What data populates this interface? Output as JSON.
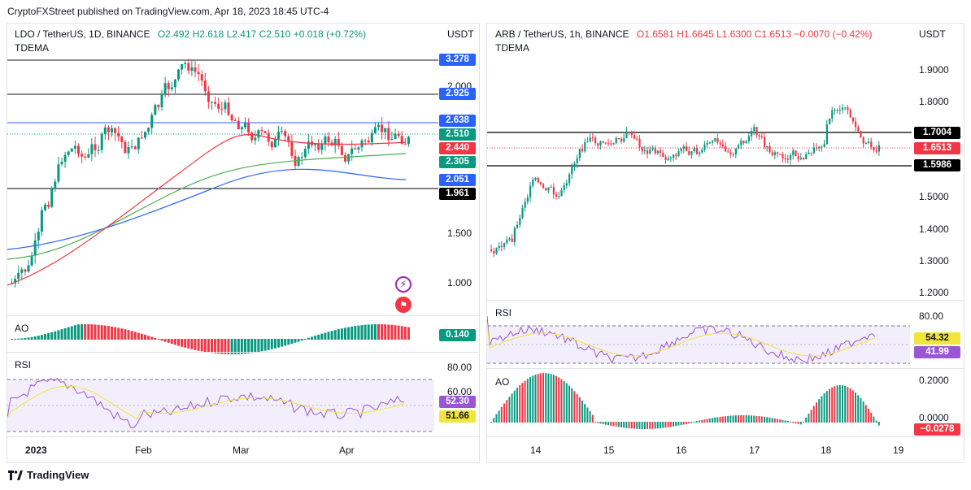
{
  "header": "CryptoFXStreet published on TradingView.com, Apr 18, 2023 18:45 UTC-4",
  "footer_brand": "TradingView",
  "left": {
    "symbol": "LDO / TetherUS, 1D, BINANCE",
    "ohlc": {
      "o": "O2.492",
      "h": "H2.618",
      "l": "L2.417",
      "c": "C2.510",
      "chg": "+0.018 (+0.72%)"
    },
    "overlay_label": "TDEMA",
    "currency": "USDT",
    "price_axis": [
      "2.000",
      "1.500",
      "1.000"
    ],
    "price_tags": [
      {
        "text": "3.278",
        "color": "#2962ff"
      },
      {
        "text": "2.925",
        "color": "#2962ff"
      },
      {
        "text": "2.638",
        "color": "#2962ff"
      },
      {
        "text": "2.510",
        "color": "#089981"
      },
      {
        "text": "2.440",
        "color": "#f23645"
      },
      {
        "text": "2.305",
        "color": "#089981"
      },
      {
        "text": "2.051",
        "color": "#2962ff"
      },
      {
        "text": "1.961",
        "color": "#000000"
      }
    ],
    "ao": {
      "title": "AO",
      "value": "0.140",
      "color": "#089981"
    },
    "rsi": {
      "title": "RSI",
      "levels": [
        "80.00",
        "60.00"
      ],
      "value1": "52.30",
      "value2": "51.66",
      "color1": "#9c56d4",
      "color2": "#f0e53a"
    },
    "time_axis": [
      "2023",
      "Feb",
      "Mar",
      "Apr"
    ],
    "icons": [
      "lightning-icon",
      "us-flag-icon"
    ]
  },
  "right": {
    "symbol": "ARB / TetherUS, 1h, BINANCE",
    "ohlc": {
      "o": "O1.6581",
      "h": "H1.6645",
      "l": "L1.6300",
      "c": "C1.6513",
      "chg": "−0.0070 (−0.42%)"
    },
    "overlay_label": "TDEMA",
    "currency": "USDT",
    "price_axis": [
      "1.9000",
      "1.8000",
      "1.5000",
      "1.4000",
      "1.3000",
      "1.2000"
    ],
    "price_tags": [
      {
        "text": "1.7004",
        "color": "#000000"
      },
      {
        "text": "1.6513",
        "color": "#f23645"
      },
      {
        "text": "1.5986",
        "color": "#000000"
      }
    ],
    "rsi": {
      "title": "RSI",
      "levels": [
        "80.00"
      ],
      "value1": "54.32",
      "value2": "41.99",
      "color1": "#f0e53a",
      "color2": "#9c56d4"
    },
    "ao": {
      "title": "AO",
      "levels": [
        "0.2000",
        "0.0000"
      ],
      "value": "−0.0278",
      "color": "#f23645"
    },
    "time_axis": [
      "14",
      "15",
      "16",
      "17",
      "18",
      "19"
    ]
  }
}
